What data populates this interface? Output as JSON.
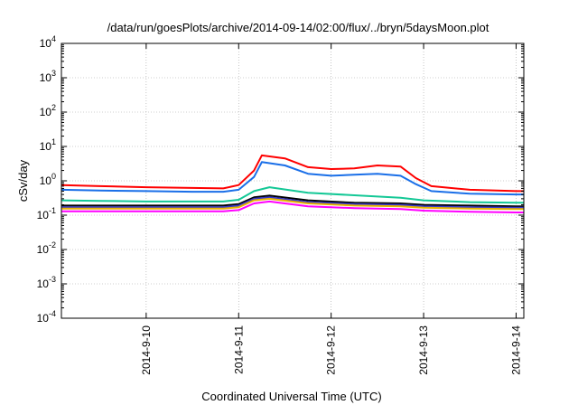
{
  "chart_data": {
    "type": "line",
    "title": "/data/run/goesPlots/archive/2014-09-14/02:00/flux/../bryn/5daysMoon.plot",
    "xlabel": "Coordinated Universal Time (UTC)",
    "ylabel": "cSv/day",
    "yscale": "log",
    "ylim": [
      0.0001,
      10000
    ],
    "xlim": [
      "2014-09-09 02:00",
      "2014-09-14 02:00"
    ],
    "grid": true,
    "legend": "none",
    "y_ticks": [
      {
        "value": 0.0001,
        "base": "10",
        "exp": "-4"
      },
      {
        "value": 0.001,
        "base": "10",
        "exp": "-3"
      },
      {
        "value": 0.01,
        "base": "10",
        "exp": "-2"
      },
      {
        "value": 0.1,
        "base": "10",
        "exp": "-1"
      },
      {
        "value": 1,
        "base": "10",
        "exp": "0"
      },
      {
        "value": 10,
        "base": "10",
        "exp": "1"
      },
      {
        "value": 100,
        "base": "10",
        "exp": "2"
      },
      {
        "value": 1000,
        "base": "10",
        "exp": "3"
      },
      {
        "value": 10000,
        "base": "10",
        "exp": "4"
      }
    ],
    "x_ticks": [
      {
        "value": "2014-09-10 00:00",
        "label": "2014-9-10"
      },
      {
        "value": "2014-09-11 00:00",
        "label": "2014-9-11"
      },
      {
        "value": "2014-09-12 00:00",
        "label": "2014-9-12"
      },
      {
        "value": "2014-09-13 00:00",
        "label": "2014-9-13"
      },
      {
        "value": "2014-09-14 00:00",
        "label": "2014-9-14"
      }
    ],
    "series": [
      {
        "color": "#ff0000",
        "x": [
          "2014-09-09 02:00",
          "2014-09-09 12:00",
          "2014-09-10 00:00",
          "2014-09-10 12:00",
          "2014-09-10 20:00",
          "2014-09-11 00:00",
          "2014-09-11 04:00",
          "2014-09-11 06:00",
          "2014-09-11 12:00",
          "2014-09-11 18:00",
          "2014-09-12 00:00",
          "2014-09-12 06:00",
          "2014-09-12 12:00",
          "2014-09-12 18:00",
          "2014-09-12 22:00",
          "2014-09-13 02:00",
          "2014-09-13 12:00",
          "2014-09-14 00:00",
          "2014-09-14 02:00"
        ],
        "y": [
          0.75,
          0.7,
          0.65,
          0.62,
          0.6,
          0.75,
          2.0,
          5.5,
          4.5,
          2.5,
          2.2,
          2.3,
          2.8,
          2.6,
          1.2,
          0.7,
          0.55,
          0.5,
          0.5
        ]
      },
      {
        "color": "#1a6fe8",
        "x": [
          "2014-09-09 02:00",
          "2014-09-09 12:00",
          "2014-09-10 00:00",
          "2014-09-10 12:00",
          "2014-09-10 20:00",
          "2014-09-11 00:00",
          "2014-09-11 04:00",
          "2014-09-11 06:00",
          "2014-09-11 12:00",
          "2014-09-11 18:00",
          "2014-09-12 00:00",
          "2014-09-12 06:00",
          "2014-09-12 12:00",
          "2014-09-12 18:00",
          "2014-09-12 22:00",
          "2014-09-13 02:00",
          "2014-09-13 12:00",
          "2014-09-14 00:00",
          "2014-09-14 02:00"
        ],
        "y": [
          0.55,
          0.52,
          0.5,
          0.48,
          0.48,
          0.55,
          1.3,
          3.5,
          2.8,
          1.6,
          1.4,
          1.5,
          1.6,
          1.4,
          0.8,
          0.5,
          0.42,
          0.4,
          0.4
        ]
      },
      {
        "color": "#14c896",
        "x": [
          "2014-09-09 02:00",
          "2014-09-09 12:00",
          "2014-09-10 00:00",
          "2014-09-10 12:00",
          "2014-09-10 20:00",
          "2014-09-11 00:00",
          "2014-09-11 04:00",
          "2014-09-11 08:00",
          "2014-09-11 18:00",
          "2014-09-12 06:00",
          "2014-09-12 18:00",
          "2014-09-13 00:00",
          "2014-09-13 12:00",
          "2014-09-14 00:00",
          "2014-09-14 02:00"
        ],
        "y": [
          0.27,
          0.26,
          0.25,
          0.25,
          0.25,
          0.28,
          0.5,
          0.65,
          0.45,
          0.38,
          0.32,
          0.27,
          0.24,
          0.23,
          0.23
        ]
      },
      {
        "color": "#000000",
        "x": [
          "2014-09-09 02:00",
          "2014-09-09 12:00",
          "2014-09-10 00:00",
          "2014-09-10 12:00",
          "2014-09-10 20:00",
          "2014-09-11 00:00",
          "2014-09-11 04:00",
          "2014-09-11 08:00",
          "2014-09-11 18:00",
          "2014-09-12 06:00",
          "2014-09-12 18:00",
          "2014-09-13 00:00",
          "2014-09-13 12:00",
          "2014-09-14 00:00",
          "2014-09-14 02:00"
        ],
        "y": [
          0.19,
          0.19,
          0.19,
          0.19,
          0.19,
          0.21,
          0.33,
          0.37,
          0.27,
          0.23,
          0.22,
          0.2,
          0.19,
          0.18,
          0.18
        ]
      },
      {
        "color": "#3838c8",
        "x": [
          "2014-09-09 02:00",
          "2014-09-09 12:00",
          "2014-09-10 00:00",
          "2014-09-10 12:00",
          "2014-09-10 20:00",
          "2014-09-11 00:00",
          "2014-09-11 04:00",
          "2014-09-11 08:00",
          "2014-09-11 18:00",
          "2014-09-12 06:00",
          "2014-09-12 18:00",
          "2014-09-13 00:00",
          "2014-09-13 12:00",
          "2014-09-14 00:00",
          "2014-09-14 02:00"
        ],
        "y": [
          0.17,
          0.17,
          0.17,
          0.17,
          0.17,
          0.19,
          0.3,
          0.33,
          0.24,
          0.21,
          0.2,
          0.18,
          0.17,
          0.165,
          0.165
        ]
      },
      {
        "color": "#e6b400",
        "x": [
          "2014-09-09 02:00",
          "2014-09-09 12:00",
          "2014-09-10 00:00",
          "2014-09-10 12:00",
          "2014-09-10 20:00",
          "2014-09-11 00:00",
          "2014-09-11 04:00",
          "2014-09-11 08:00",
          "2014-09-11 18:00",
          "2014-09-12 06:00",
          "2014-09-12 18:00",
          "2014-09-13 00:00",
          "2014-09-13 12:00",
          "2014-09-14 00:00",
          "2014-09-14 02:00"
        ],
        "y": [
          0.155,
          0.155,
          0.155,
          0.155,
          0.155,
          0.17,
          0.27,
          0.3,
          0.22,
          0.19,
          0.18,
          0.165,
          0.155,
          0.15,
          0.15
        ]
      },
      {
        "color": "#ff00ff",
        "x": [
          "2014-09-09 02:00",
          "2014-09-09 12:00",
          "2014-09-10 00:00",
          "2014-09-10 12:00",
          "2014-09-10 20:00",
          "2014-09-11 00:00",
          "2014-09-11 04:00",
          "2014-09-11 08:00",
          "2014-09-11 18:00",
          "2014-09-12 06:00",
          "2014-09-12 18:00",
          "2014-09-13 00:00",
          "2014-09-13 12:00",
          "2014-09-14 00:00",
          "2014-09-14 02:00"
        ],
        "y": [
          0.13,
          0.13,
          0.13,
          0.13,
          0.13,
          0.14,
          0.22,
          0.25,
          0.18,
          0.16,
          0.15,
          0.135,
          0.125,
          0.12,
          0.12
        ]
      }
    ]
  }
}
